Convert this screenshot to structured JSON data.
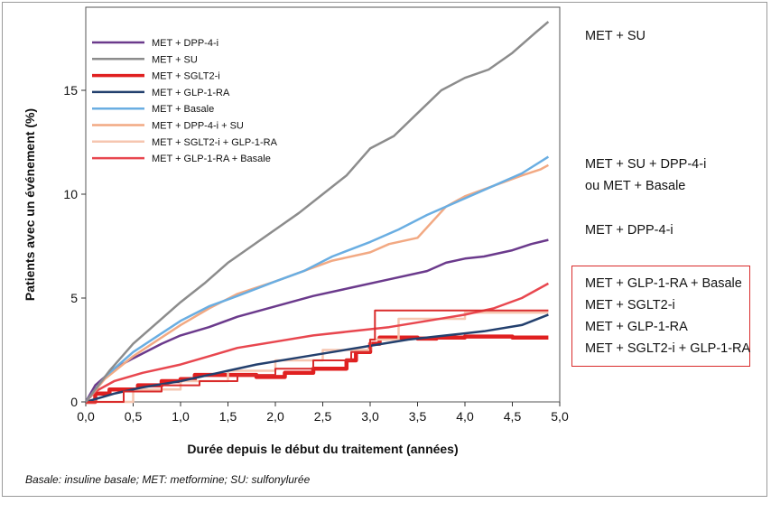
{
  "chart_data": {
    "type": "line",
    "xlabel": "Durée depuis le début du traitement (années)",
    "ylabel": "Patients avec un événement (%)",
    "xlim": [
      0,
      5
    ],
    "ylim": [
      0,
      19
    ],
    "x_ticks": [
      "0,0",
      "0,5",
      "1,0",
      "1,5",
      "2,0",
      "2,5",
      "3,0",
      "3,5",
      "4,0",
      "4,5",
      "5,0"
    ],
    "y_ticks": [
      "0",
      "5",
      "10",
      "15"
    ],
    "legend_position": "top-left",
    "series": [
      {
        "name": "MET + DPP-4-i",
        "color": "#6b3a8c",
        "width": 2.5,
        "x": [
          0,
          0.1,
          0.3,
          0.5,
          0.8,
          1,
          1.3,
          1.6,
          2,
          2.4,
          2.8,
          3.2,
          3.6,
          3.8,
          4,
          4.2,
          4.5,
          4.7,
          4.88
        ],
        "y": [
          0,
          0.8,
          1.6,
          2.1,
          2.8,
          3.2,
          3.6,
          4.1,
          4.6,
          5.1,
          5.5,
          5.9,
          6.3,
          6.7,
          6.9,
          7.0,
          7.3,
          7.6,
          7.8
        ]
      },
      {
        "name": "MET + SU",
        "color": "#8c8c8c",
        "width": 2.5,
        "x": [
          0,
          0.25,
          0.5,
          0.75,
          1,
          1.25,
          1.5,
          1.75,
          2,
          2.25,
          2.5,
          2.75,
          3,
          3.25,
          3.5,
          3.75,
          4,
          4.25,
          4.5,
          4.75,
          4.88
        ],
        "y": [
          0,
          1.5,
          2.8,
          3.8,
          4.8,
          5.7,
          6.7,
          7.5,
          8.3,
          9.1,
          10.0,
          10.9,
          12.2,
          12.8,
          13.9,
          15.0,
          15.6,
          16.0,
          16.8,
          17.8,
          18.3
        ]
      },
      {
        "name": "MET + SGLT2-i",
        "color": "#e02020",
        "width": 4.5,
        "stepped": true,
        "x": [
          0,
          0.1,
          0.25,
          0.55,
          0.8,
          1.0,
          1.15,
          1.8,
          2.1,
          2.4,
          2.75,
          2.85,
          3.0,
          3.1,
          3.5,
          3.7,
          4.0,
          4.3,
          4.5,
          4.88
        ],
        "y": [
          0,
          0.4,
          0.6,
          0.8,
          1.0,
          1.1,
          1.3,
          1.2,
          1.4,
          1.6,
          2.0,
          2.4,
          2.8,
          3.1,
          3.05,
          3.1,
          3.15,
          3.15,
          3.1,
          3.1
        ]
      },
      {
        "name": "MET + GLP-1-RA",
        "color": "#23406e",
        "width": 2.5,
        "x": [
          0,
          0.3,
          0.6,
          1,
          1.4,
          1.8,
          2.2,
          2.6,
          3,
          3.4,
          3.8,
          4.2,
          4.6,
          4.88
        ],
        "y": [
          0,
          0.4,
          0.7,
          1.0,
          1.4,
          1.8,
          2.1,
          2.4,
          2.7,
          3.0,
          3.2,
          3.4,
          3.7,
          4.2
        ]
      },
      {
        "name": "MET + Basale",
        "color": "#6aaee2",
        "width": 2.5,
        "x": [
          0,
          0.2,
          0.5,
          0.8,
          1,
          1.3,
          1.6,
          2,
          2.3,
          2.6,
          3,
          3.3,
          3.6,
          4,
          4.3,
          4.6,
          4.88
        ],
        "y": [
          0,
          1.2,
          2.4,
          3.3,
          3.9,
          4.6,
          5.1,
          5.8,
          6.3,
          7.0,
          7.7,
          8.3,
          9.0,
          9.8,
          10.4,
          11.0,
          11.8
        ]
      },
      {
        "name": "MET + DPP-4-i + SU",
        "color": "#f2a983",
        "width": 2.5,
        "x": [
          0,
          0.2,
          0.5,
          0.8,
          1,
          1.3,
          1.6,
          2,
          2.3,
          2.6,
          3,
          3.2,
          3.5,
          3.8,
          4,
          4.3,
          4.6,
          4.8,
          4.88
        ],
        "y": [
          0,
          1.1,
          2.2,
          3.1,
          3.7,
          4.5,
          5.2,
          5.8,
          6.3,
          6.8,
          7.2,
          7.6,
          7.9,
          9.4,
          9.9,
          10.4,
          10.9,
          11.2,
          11.4
        ]
      },
      {
        "name": "MET + SGLT2-i + GLP-1-RA",
        "color": "#f6c6b0",
        "width": 2.5,
        "stepped": true,
        "x": [
          0,
          0.5,
          1.0,
          1.5,
          2.0,
          2.5,
          3.0,
          3.3,
          4.0,
          4.88
        ],
        "y": [
          0,
          0.6,
          1.0,
          1.5,
          2.0,
          2.5,
          3.0,
          4.0,
          4.3,
          4.3
        ]
      },
      {
        "name": "MET + GLP-1-RA + Basale",
        "color": "#e8474f",
        "width": 2.5,
        "x": [
          0,
          0.1,
          0.3,
          0.6,
          1,
          1.3,
          1.6,
          2,
          2.4,
          2.8,
          3.2,
          3.6,
          4,
          4.3,
          4.6,
          4.88
        ],
        "y": [
          0,
          0.5,
          1.0,
          1.4,
          1.8,
          2.2,
          2.6,
          2.9,
          3.2,
          3.4,
          3.6,
          3.9,
          4.2,
          4.5,
          5.0,
          5.7
        ]
      },
      {
        "name": "",
        "color": "#d92b2b",
        "width": 2,
        "stepped": true,
        "legend": false,
        "x": [
          0,
          0.4,
          0.8,
          1.2,
          1.6,
          2,
          2.4,
          2.8,
          3.0,
          3.05,
          3.5,
          4,
          4.5,
          4.88
        ],
        "y": [
          0,
          0.5,
          0.8,
          1.0,
          1.3,
          1.6,
          2.0,
          2.4,
          3.0,
          4.4,
          4.4,
          4.4,
          4.4,
          4.4
        ]
      }
    ]
  },
  "annotations": {
    "met_su": "MET + SU",
    "met_su_dpp4": "MET + SU + DPP-4-i",
    "or_met_basale": "ou MET + Basale",
    "met_dpp4": "MET + DPP-4-i",
    "boxed": [
      "MET + GLP-1-RA + Basale",
      "MET + SGLT2-i",
      "MET + GLP-1-RA",
      "MET + SGLT2-i + GLP-1-RA"
    ]
  },
  "footnote": "Basale: insuline basale; MET: metformine; SU: sulfonylurée"
}
